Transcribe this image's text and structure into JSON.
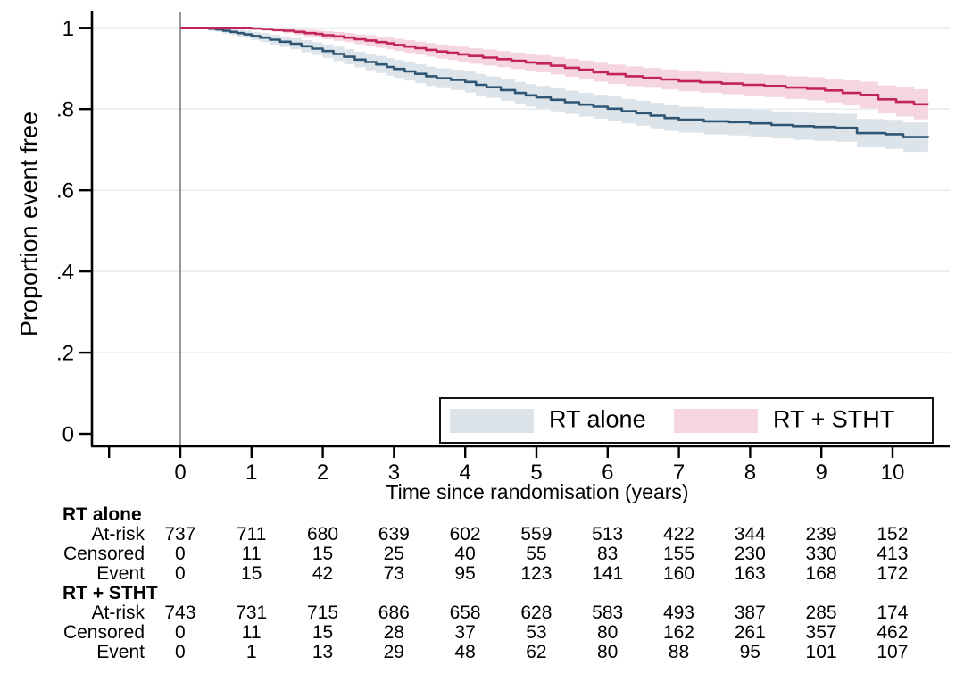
{
  "figure": {
    "type": "kaplan-meier-survival-plot",
    "background_color": "#ffffff",
    "axis_color": "#000000",
    "gridline_color": "#e7edf0",
    "reference_line_color": "#8c8c8c"
  },
  "legend": {
    "items": [
      {
        "label": "RT alone",
        "swatch_color": "#dde4e9"
      },
      {
        "label": "RT + STHT",
        "swatch_color": "#f5d5e0"
      }
    ]
  },
  "chart_data": {
    "type": "line",
    "subtype": "kaplan-meier-step-with-confidence-bands",
    "title": "",
    "xlabel": "Time since randomisation (years)",
    "ylabel": "Proportion event free",
    "xlim": [
      -1.25,
      10.8
    ],
    "ylim": [
      0,
      1.03
    ],
    "x_ticks": [
      0,
      1,
      2,
      3,
      4,
      5,
      6,
      7,
      8,
      9,
      10
    ],
    "x_minor_ticks": [
      -1
    ],
    "y_ticks": [
      {
        "v": 1.0,
        "label": "1"
      },
      {
        "v": 0.8,
        "label": ".8"
      },
      {
        "v": 0.6,
        "label": ".6"
      },
      {
        "v": 0.4,
        "label": ".4"
      },
      {
        "v": 0.2,
        "label": ".2"
      },
      {
        "v": 0.0,
        "label": "0"
      }
    ],
    "grid": "horizontal-only",
    "reference_line_x": 0,
    "legend_position": "inside-bottom-right-boxed",
    "series": [
      {
        "name": "RT alone",
        "line_color": "#2e5674",
        "band_color": "#dde4e9",
        "steps": [
          [
            0,
            1
          ],
          [
            0.4,
            0.998
          ],
          [
            0.5,
            0.996
          ],
          [
            0.6,
            0.993
          ],
          [
            0.7,
            0.99
          ],
          [
            0.8,
            0.987
          ],
          [
            0.9,
            0.984
          ],
          [
            1.0,
            0.98
          ],
          [
            1.12,
            0.976
          ],
          [
            1.26,
            0.971
          ],
          [
            1.4,
            0.966
          ],
          [
            1.55,
            0.961
          ],
          [
            1.7,
            0.955
          ],
          [
            1.85,
            0.949
          ],
          [
            2.0,
            0.943
          ],
          [
            2.15,
            0.936
          ],
          [
            2.3,
            0.929
          ],
          [
            2.45,
            0.922
          ],
          [
            2.6,
            0.916
          ],
          [
            2.75,
            0.91
          ],
          [
            2.9,
            0.904
          ],
          [
            3.0,
            0.899
          ],
          [
            3.15,
            0.893
          ],
          [
            3.3,
            0.887
          ],
          [
            3.45,
            0.881
          ],
          [
            3.6,
            0.876
          ],
          [
            3.8,
            0.872
          ],
          [
            4.0,
            0.867
          ],
          [
            4.15,
            0.86
          ],
          [
            4.3,
            0.854
          ],
          [
            4.5,
            0.847
          ],
          [
            4.7,
            0.84
          ],
          [
            4.85,
            0.834
          ],
          [
            5.0,
            0.829
          ],
          [
            5.2,
            0.823
          ],
          [
            5.4,
            0.817
          ],
          [
            5.6,
            0.811
          ],
          [
            5.8,
            0.806
          ],
          [
            6.0,
            0.801
          ],
          [
            6.2,
            0.795
          ],
          [
            6.4,
            0.79
          ],
          [
            6.6,
            0.784
          ],
          [
            6.8,
            0.778
          ],
          [
            7.0,
            0.774
          ],
          [
            7.35,
            0.77
          ],
          [
            7.7,
            0.768
          ],
          [
            8.0,
            0.765
          ],
          [
            8.3,
            0.761
          ],
          [
            8.6,
            0.758
          ],
          [
            8.9,
            0.756
          ],
          [
            9.2,
            0.754
          ],
          [
            9.5,
            0.741
          ],
          [
            9.9,
            0.738
          ],
          [
            10.15,
            0.731
          ],
          [
            10.5,
            0.729
          ]
        ],
        "ci_halfwidth": [
          [
            0,
            0.002
          ],
          [
            0.5,
            0.006
          ],
          [
            1,
            0.01
          ],
          [
            2,
            0.017
          ],
          [
            3,
            0.022
          ],
          [
            4,
            0.026
          ],
          [
            5,
            0.028
          ],
          [
            6,
            0.03
          ],
          [
            7,
            0.032
          ],
          [
            8,
            0.033
          ],
          [
            9,
            0.034
          ],
          [
            10,
            0.036
          ],
          [
            10.5,
            0.037
          ]
        ]
      },
      {
        "name": "RT + STHT",
        "line_color": "#c1235a",
        "band_color": "#f5d5e0",
        "steps": [
          [
            0,
            1
          ],
          [
            1.0,
            0.9985
          ],
          [
            1.15,
            0.997
          ],
          [
            1.3,
            0.995
          ],
          [
            1.45,
            0.993
          ],
          [
            1.6,
            0.99
          ],
          [
            1.75,
            0.987
          ],
          [
            1.9,
            0.985
          ],
          [
            2.0,
            0.982
          ],
          [
            2.15,
            0.979
          ],
          [
            2.3,
            0.976
          ],
          [
            2.45,
            0.972
          ],
          [
            2.6,
            0.969
          ],
          [
            2.75,
            0.965
          ],
          [
            2.9,
            0.962
          ],
          [
            3.0,
            0.958
          ],
          [
            3.15,
            0.954
          ],
          [
            3.3,
            0.95
          ],
          [
            3.45,
            0.946
          ],
          [
            3.6,
            0.942
          ],
          [
            3.75,
            0.939
          ],
          [
            3.9,
            0.935
          ],
          [
            4.05,
            0.931
          ],
          [
            4.25,
            0.927
          ],
          [
            4.45,
            0.923
          ],
          [
            4.65,
            0.919
          ],
          [
            4.85,
            0.915
          ],
          [
            5.0,
            0.912
          ],
          [
            5.2,
            0.907
          ],
          [
            5.4,
            0.902
          ],
          [
            5.6,
            0.897
          ],
          [
            5.8,
            0.891
          ],
          [
            6.0,
            0.886
          ],
          [
            6.25,
            0.881
          ],
          [
            6.5,
            0.877
          ],
          [
            6.75,
            0.873
          ],
          [
            7.0,
            0.869
          ],
          [
            7.3,
            0.866
          ],
          [
            7.6,
            0.863
          ],
          [
            7.9,
            0.86
          ],
          [
            8.2,
            0.857
          ],
          [
            8.5,
            0.853
          ],
          [
            8.8,
            0.85
          ],
          [
            9.05,
            0.846
          ],
          [
            9.3,
            0.84
          ],
          [
            9.55,
            0.835
          ],
          [
            9.8,
            0.824
          ],
          [
            10.05,
            0.818
          ],
          [
            10.3,
            0.812
          ],
          [
            10.5,
            0.811
          ]
        ],
        "ci_halfwidth": [
          [
            0,
            0.001
          ],
          [
            1,
            0.003
          ],
          [
            2,
            0.01
          ],
          [
            3,
            0.015
          ],
          [
            4,
            0.019
          ],
          [
            5,
            0.021
          ],
          [
            6,
            0.024
          ],
          [
            7,
            0.025
          ],
          [
            8,
            0.027
          ],
          [
            9,
            0.029
          ],
          [
            9.6,
            0.033
          ],
          [
            10,
            0.036
          ],
          [
            10.5,
            0.038
          ]
        ]
      }
    ],
    "risk_table": {
      "times": [
        0,
        1,
        2,
        3,
        4,
        5,
        6,
        7,
        8,
        9,
        10
      ],
      "groups": [
        {
          "label": "RT alone",
          "rows": [
            {
              "label": "At-risk",
              "values": [
                737,
                711,
                680,
                639,
                602,
                559,
                513,
                422,
                344,
                239,
                152
              ]
            },
            {
              "label": "Censored",
              "values": [
                0,
                11,
                15,
                25,
                40,
                55,
                83,
                155,
                230,
                330,
                413
              ]
            },
            {
              "label": "Event",
              "values": [
                0,
                15,
                42,
                73,
                95,
                123,
                141,
                160,
                163,
                168,
                172
              ]
            }
          ]
        },
        {
          "label": "RT + STHT",
          "rows": [
            {
              "label": "At-risk",
              "values": [
                743,
                731,
                715,
                686,
                658,
                628,
                583,
                493,
                387,
                285,
                174
              ]
            },
            {
              "label": "Censored",
              "values": [
                0,
                11,
                15,
                28,
                37,
                53,
                80,
                162,
                261,
                357,
                462
              ]
            },
            {
              "label": "Event",
              "values": [
                0,
                1,
                13,
                29,
                48,
                62,
                80,
                88,
                95,
                101,
                107
              ]
            }
          ]
        }
      ]
    }
  }
}
